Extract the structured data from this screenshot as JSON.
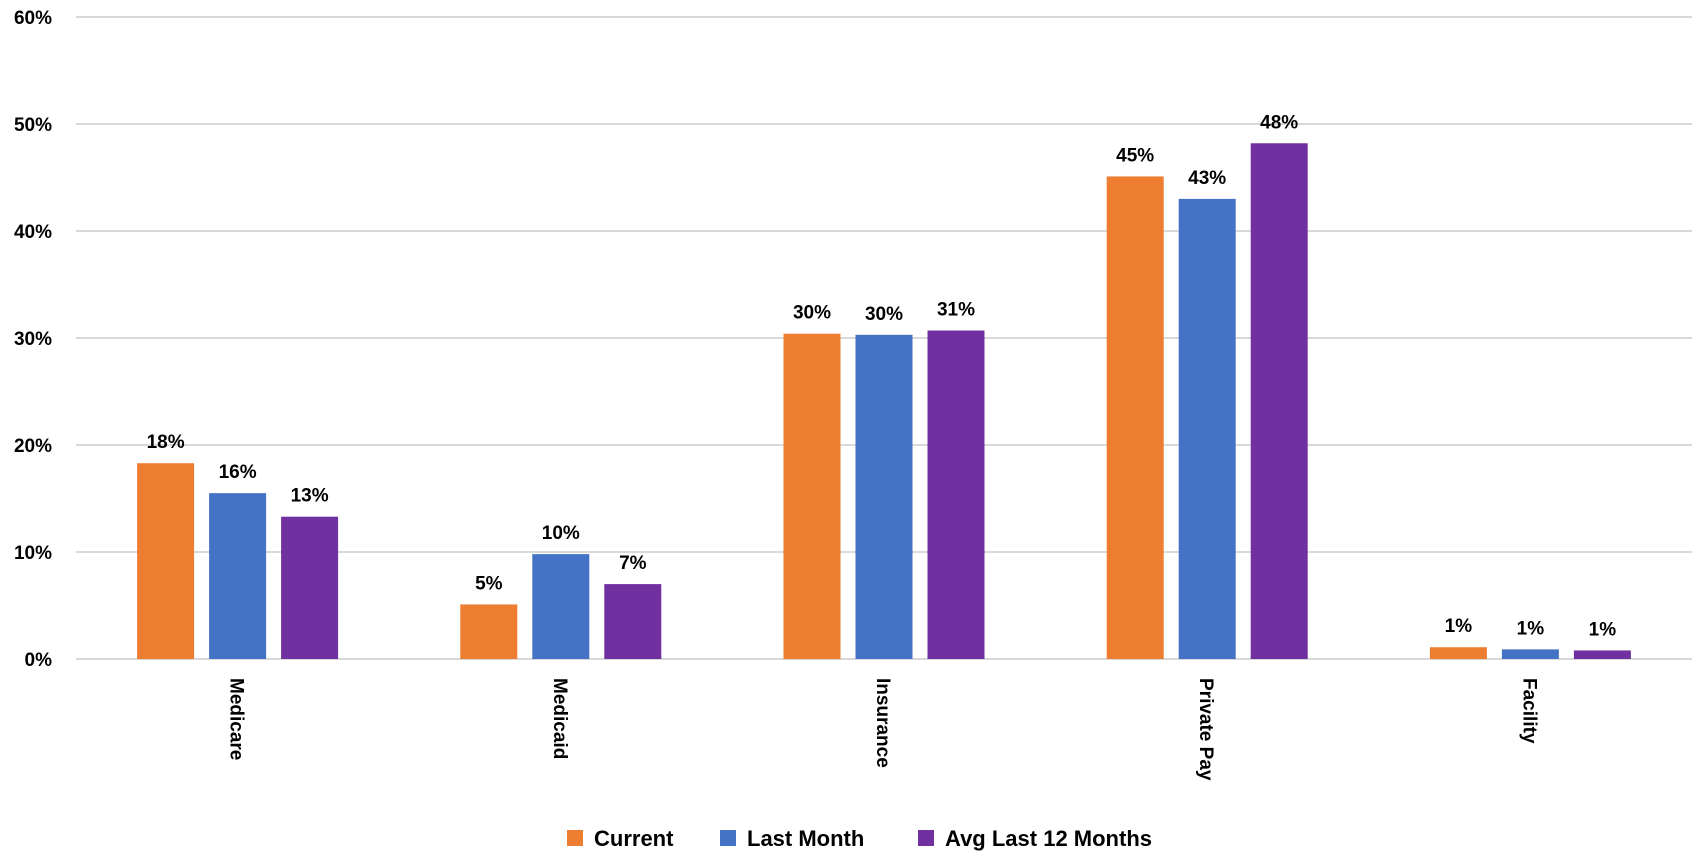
{
  "chart_data": {
    "type": "bar",
    "categories": [
      "Medicare",
      "Medicaid",
      "Insurance",
      "Private Pay",
      "Facility"
    ],
    "series": [
      {
        "name": "Current",
        "color": "#ED7D31",
        "values": [
          18.3,
          5.1,
          30.4,
          45.1,
          1.1
        ],
        "labels": [
          "18%",
          "5%",
          "30%",
          "45%",
          "1%"
        ]
      },
      {
        "name": "Last Month",
        "color": "#4472C4",
        "values": [
          15.5,
          9.8,
          30.3,
          43.0,
          0.9
        ],
        "labels": [
          "16%",
          "10%",
          "30%",
          "43%",
          "1%"
        ]
      },
      {
        "name": "Avg Last 12 Months",
        "color": "#7030A0",
        "values": [
          13.3,
          7.0,
          30.7,
          48.2,
          0.8
        ],
        "labels": [
          "13%",
          "7%",
          "31%",
          "48%",
          "1%"
        ]
      }
    ],
    "title": "",
    "xlabel": "",
    "ylabel": "",
    "ylim": [
      0,
      60
    ],
    "yticks": [
      0,
      10,
      20,
      30,
      40,
      50,
      60
    ],
    "ytick_labels": [
      "0%",
      "10%",
      "20%",
      "30%",
      "40%",
      "50%",
      "60%"
    ],
    "grid": true,
    "gridline_color": "#D9D9D9",
    "legend_position": "bottom"
  }
}
